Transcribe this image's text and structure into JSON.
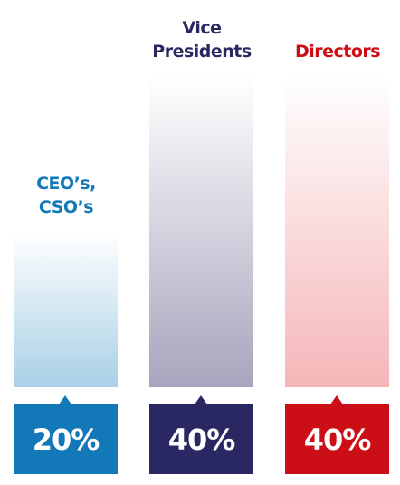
{
  "chart_data": {
    "type": "bar",
    "categories": [
      "CEO’s, CSO’s",
      "Vice Presidents",
      "Directors"
    ],
    "values": [
      20,
      40,
      40
    ],
    "value_labels": [
      "20%",
      "40%",
      "40%"
    ],
    "colors": [
      "#1278b8",
      "#2a2862",
      "#cc0f16"
    ],
    "bar_colors": [
      "#a9d0e6",
      "#a8a4bd",
      "#f5b6b8"
    ]
  }
}
